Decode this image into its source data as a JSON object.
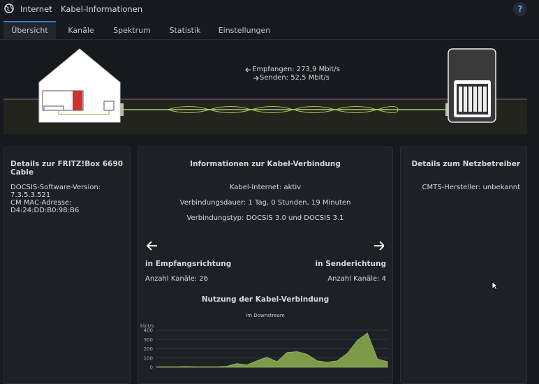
{
  "header": {
    "breadcrumb": [
      "Internet",
      "Kabel-Informationen"
    ],
    "help": "?"
  },
  "tabs": [
    "Übersicht",
    "Kanäle",
    "Spektrum",
    "Statistik",
    "Einstellungen"
  ],
  "diagram": {
    "receive": "Empfangen: 273,9 Mbit/s",
    "send": "Senden: 52,5 Mbit/s"
  },
  "left_panel": {
    "title": "Details zur FRITZ!Box 6690 Cable",
    "lines": [
      "DOCSIS-Software-Version: 7.3.5.3.521",
      "CM MAC-Adresse: D4:24:DD:B0:98:B6"
    ]
  },
  "middle_panel": {
    "title": "Informationen zur Kabel-Verbindung",
    "lines": [
      "Kabel-Internet: aktiv",
      "Verbindungsdauer: 1 Tag, 0 Stunden, 19 Minuten",
      "Verbindungstyp: DOCSIS 3.0 und DOCSIS 3.1"
    ],
    "downstream": {
      "title": "in Empfangsrichtung",
      "channels": "Anzahl Kanäle: 26"
    },
    "upstream": {
      "title": "in Senderichtung",
      "channels": "Anzahl Kanäle: 4"
    }
  },
  "usage_chart": {
    "type": "area",
    "title": "Nutzung der Kabel-Verbindung",
    "subtitle": "im Downstream",
    "y_unit": "kbit/s",
    "color": "#7d9a4a",
    "ylim": [
      0,
      400
    ],
    "yticks": [
      0,
      100,
      200,
      300,
      400
    ],
    "grid": true,
    "values": [
      5,
      5,
      5,
      8,
      5,
      5,
      5,
      10,
      40,
      25,
      70,
      110,
      60,
      160,
      170,
      140,
      70,
      55,
      70,
      150,
      290,
      370,
      90,
      60
    ]
  },
  "right_panel": {
    "title": "Details zum Netzbetreiber",
    "lines": [
      "CMTS-Hersteller: unbekannt"
    ]
  }
}
